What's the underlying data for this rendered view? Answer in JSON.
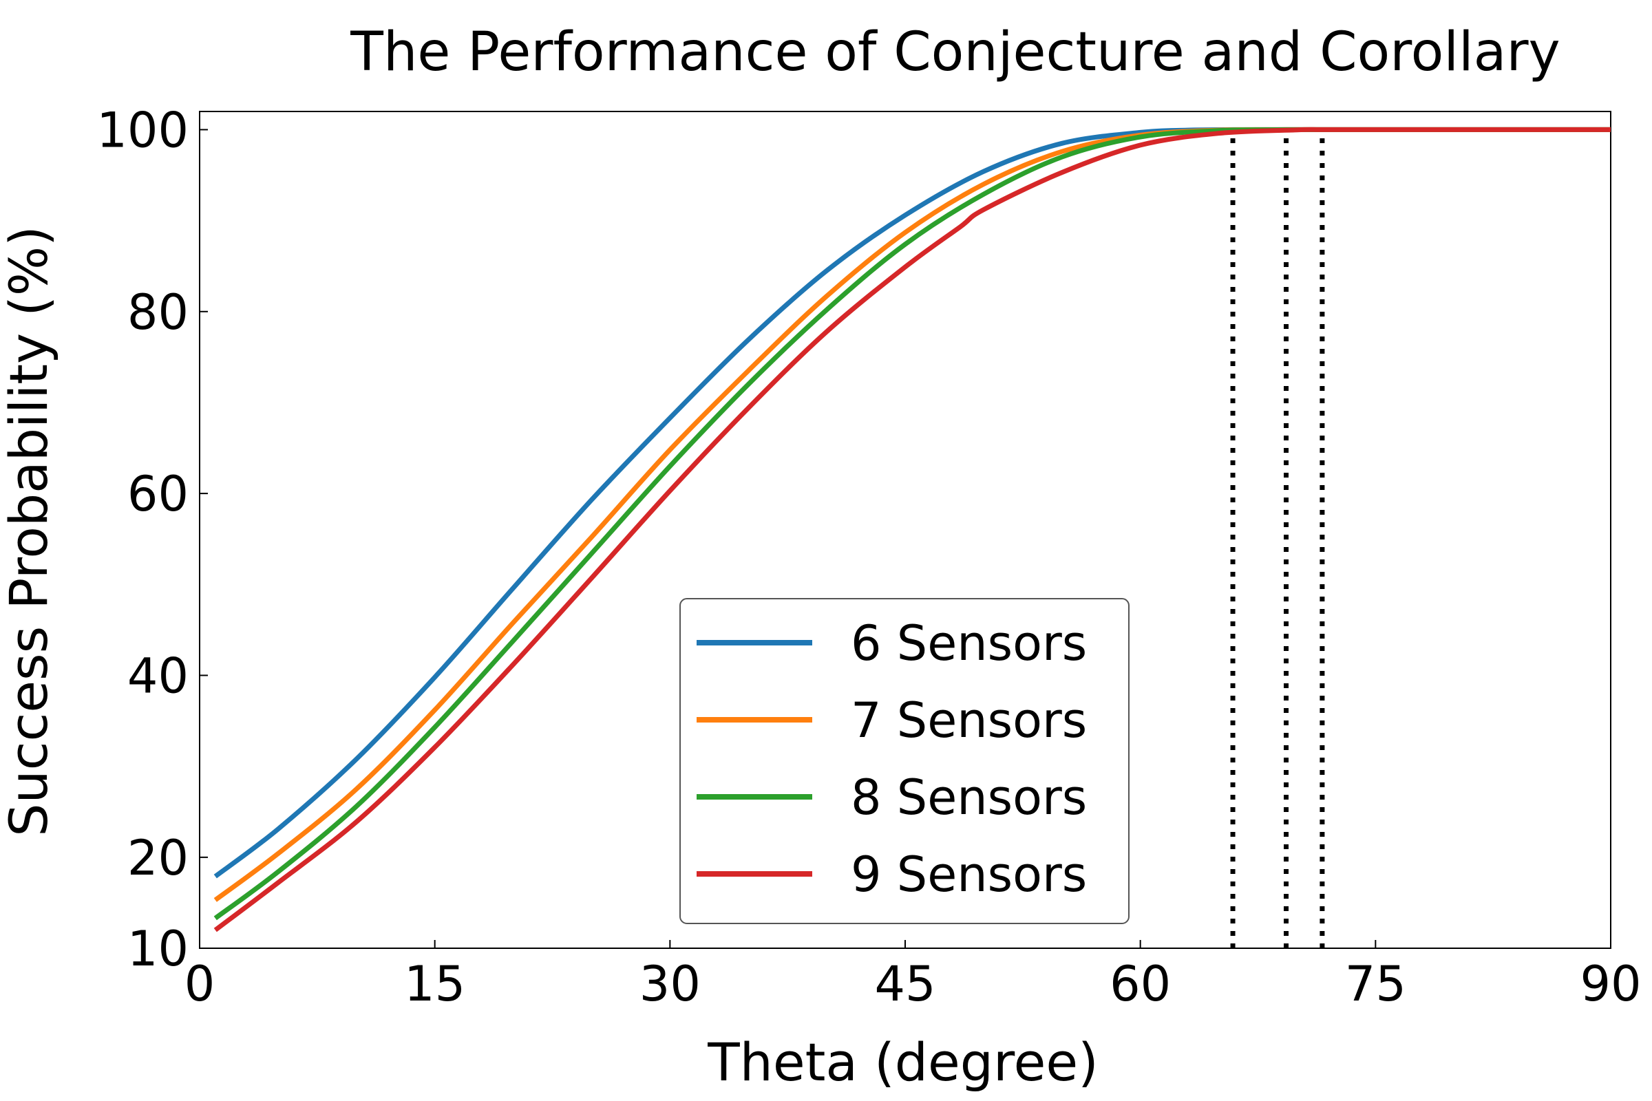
{
  "chart_data": {
    "type": "line",
    "title": "The Performance of Conjecture and Corollary",
    "xlabel": "Theta (degree)",
    "ylabel": "Success Probability (%)",
    "xlim": [
      0,
      90
    ],
    "ylim": [
      10,
      102
    ],
    "xticks": [
      0,
      15,
      30,
      45,
      60,
      75,
      90
    ],
    "yticks": [
      10,
      20,
      40,
      60,
      80,
      100
    ],
    "grid": false,
    "legend_position": "lower-center",
    "series": [
      {
        "name": "6 Sensors",
        "color": "#1f77b4",
        "x": [
          1,
          5,
          10,
          15,
          20,
          25,
          30,
          35,
          40,
          45,
          50,
          55,
          60,
          63,
          65.9,
          70,
          80,
          90
        ],
        "y": [
          17.9,
          23.1,
          30.8,
          39.8,
          49.6,
          59.3,
          68.3,
          76.9,
          84.5,
          90.6,
          95.4,
          98.5,
          99.7,
          99.95,
          100,
          100,
          100,
          100
        ]
      },
      {
        "name": "7 Sensors",
        "color": "#ff7f0e",
        "x": [
          1,
          5,
          10,
          15,
          20,
          25,
          30,
          35,
          40,
          45,
          50,
          55,
          60,
          65,
          69.3,
          75,
          90
        ],
        "y": [
          15.3,
          20.4,
          27.5,
          36.2,
          45.8,
          55.2,
          64.8,
          73.5,
          81.7,
          88.7,
          94.0,
          97.6,
          99.4,
          99.95,
          100,
          100,
          100
        ]
      },
      {
        "name": "8 Sensors",
        "color": "#2ca02c",
        "x": [
          1,
          5,
          10,
          15,
          20,
          25,
          30,
          35,
          40,
          45,
          50,
          55,
          60,
          65,
          69.3,
          75,
          90
        ],
        "y": [
          13.3,
          18.4,
          25.6,
          34.3,
          43.8,
          53.4,
          63.0,
          72.0,
          80.2,
          87.4,
          92.9,
          97.0,
          99.2,
          99.9,
          100,
          100,
          100
        ]
      },
      {
        "name": "9 Sensors",
        "color": "#d62728",
        "x": [
          1,
          5,
          10,
          15,
          20,
          25,
          30,
          35,
          40,
          45,
          48.5,
          50,
          55,
          60,
          65,
          70,
          71.6,
          75,
          90
        ],
        "y": [
          12.0,
          17.2,
          23.9,
          32.1,
          41.2,
          50.7,
          60.3,
          69.4,
          77.8,
          84.9,
          89.3,
          91.2,
          95.3,
          98.3,
          99.6,
          99.98,
          100,
          100,
          100
        ]
      }
    ],
    "vlines": {
      "style": "dotted",
      "color": "#000000",
      "x": [
        65.9,
        69.3,
        71.6
      ],
      "y_from": 10,
      "y_to": 100
    }
  }
}
